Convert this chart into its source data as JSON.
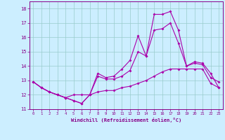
{
  "xlabel": "Windchill (Refroidissement éolien,°C)",
  "x": [
    0,
    1,
    2,
    3,
    4,
    5,
    6,
    7,
    8,
    9,
    10,
    11,
    12,
    13,
    14,
    15,
    16,
    17,
    18,
    19,
    20,
    21,
    22,
    23
  ],
  "line1": [
    12.9,
    12.5,
    12.2,
    12.0,
    11.8,
    11.6,
    11.4,
    12.0,
    13.5,
    13.2,
    13.3,
    13.8,
    14.4,
    16.1,
    14.7,
    17.6,
    17.6,
    17.8,
    16.5,
    14.0,
    14.2,
    14.1,
    13.2,
    12.9
  ],
  "line2": [
    12.9,
    12.5,
    12.2,
    12.0,
    11.8,
    11.6,
    11.4,
    12.0,
    13.3,
    13.1,
    13.1,
    13.3,
    13.7,
    15.0,
    14.7,
    16.5,
    16.6,
    17.0,
    15.6,
    14.0,
    14.3,
    14.2,
    13.5,
    12.5
  ],
  "line3": [
    12.9,
    12.5,
    12.2,
    12.0,
    11.8,
    12.0,
    12.0,
    12.0,
    12.2,
    12.3,
    12.3,
    12.5,
    12.6,
    12.8,
    13.0,
    13.3,
    13.6,
    13.8,
    13.8,
    13.8,
    13.8,
    13.8,
    12.8,
    12.5
  ],
  "line_color1": "#aa00aa",
  "line_color2": "#aa00aa",
  "line_color3": "#aa00aa",
  "bg_color": "#cceeff",
  "grid_color": "#99cccc",
  "axis_color": "#880088",
  "label_color": "#880088",
  "ylim": [
    11,
    18.5
  ],
  "xlim": [
    -0.5,
    23.5
  ],
  "yticks": [
    11,
    12,
    13,
    14,
    15,
    16,
    17,
    18
  ],
  "xticks": [
    0,
    1,
    2,
    3,
    4,
    5,
    6,
    7,
    8,
    9,
    10,
    11,
    12,
    13,
    14,
    15,
    16,
    17,
    18,
    19,
    20,
    21,
    22,
    23
  ],
  "markersize": 2.0,
  "linewidth": 0.8
}
